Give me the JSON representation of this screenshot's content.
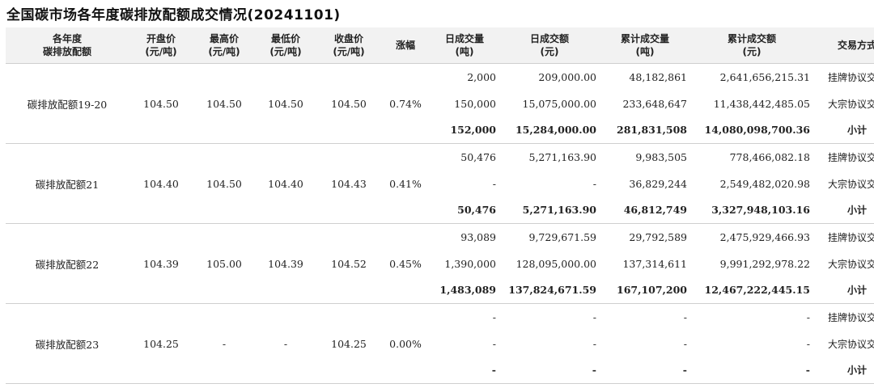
{
  "title": "全国碳市场各年度碳排放配额成交情况(20241101)",
  "headers": [
    [
      "各年度",
      "碳排放配额"
    ],
    [
      "开盘价",
      "(元/吨)"
    ],
    [
      "最高价",
      "(元/吨)"
    ],
    [
      "最低价",
      "(元/吨)"
    ],
    [
      "收盘价",
      "(元/吨)"
    ],
    [
      "涨幅"
    ],
    [
      "日成交量",
      "(吨)"
    ],
    [
      "日成交额",
      "(元)"
    ],
    [
      "累计成交量",
      "(吨)"
    ],
    [
      "累计成交额",
      "(元)"
    ],
    [
      "交易方式"
    ]
  ],
  "groups": [
    {
      "name": "碳排放配额19-20",
      "open": "104.50",
      "high": "104.50",
      "low": "104.50",
      "close": "104.50",
      "change": "0.74%",
      "rows": [
        [
          "2,000",
          "209,000.00",
          "48,182,861",
          "2,641,656,215.31",
          "挂牌协议交易"
        ],
        [
          "150,000",
          "15,075,000.00",
          "233,648,647",
          "11,438,442,485.05",
          "大宗协议交易"
        ],
        [
          "152,000",
          "15,284,000.00",
          "281,831,508",
          "14,080,098,700.36",
          "小计"
        ]
      ]
    },
    {
      "name": "碳排放配额21",
      "open": "104.40",
      "high": "104.50",
      "low": "104.40",
      "close": "104.43",
      "change": "0.41%",
      "rows": [
        [
          "50,476",
          "5,271,163.90",
          "9,983,505",
          "778,466,082.18",
          "挂牌协议交易"
        ],
        [
          "-",
          "-",
          "36,829,244",
          "2,549,482,020.98",
          "大宗协议交易"
        ],
        [
          "50,476",
          "5,271,163.90",
          "46,812,749",
          "3,327,948,103.16",
          "小计"
        ]
      ]
    },
    {
      "name": "碳排放配额22",
      "open": "104.39",
      "high": "105.00",
      "low": "104.39",
      "close": "104.52",
      "change": "0.45%",
      "rows": [
        [
          "93,089",
          "9,729,671.59",
          "29,792,589",
          "2,475,929,466.93",
          "挂牌协议交易"
        ],
        [
          "1,390,000",
          "128,095,000.00",
          "137,314,611",
          "9,991,292,978.22",
          "大宗协议交易"
        ],
        [
          "1,483,089",
          "137,824,671.59",
          "167,107,200",
          "12,467,222,445.15",
          "小计"
        ]
      ]
    },
    {
      "name": "碳排放配额23",
      "open": "104.25",
      "high": "-",
      "low": "-",
      "close": "104.25",
      "change": "0.00%",
      "rows": [
        [
          "-",
          "-",
          "-",
          "-",
          "挂牌协议交易"
        ],
        [
          "-",
          "-",
          "-",
          "-",
          "大宗协议交易"
        ],
        [
          "-",
          "-",
          "-",
          "-",
          "小计"
        ]
      ]
    }
  ]
}
